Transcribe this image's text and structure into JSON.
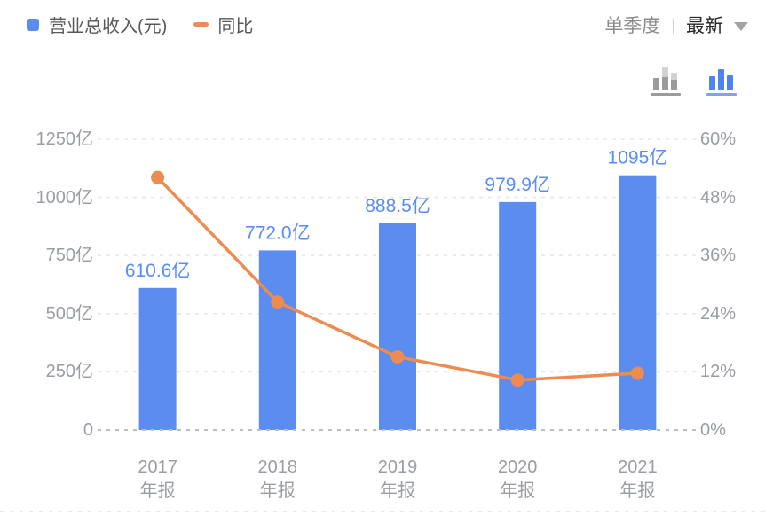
{
  "header": {
    "legend": [
      {
        "label": "营业总收入(元)",
        "color": "#5B8CF0",
        "marker": "square"
      },
      {
        "label": "同比",
        "color": "#ED8B51",
        "marker": "dash"
      }
    ],
    "period_selector": {
      "inactive_option": "单季度",
      "separator": "|",
      "selected_option": "最新"
    },
    "chart_style_icons": [
      "quarterly-bars-icon",
      "annual-bars-icon"
    ]
  },
  "chart_data": {
    "type": "bar+line",
    "categories": [
      {
        "line1": "2017",
        "line2": "年报"
      },
      {
        "line1": "2018",
        "line2": "年报"
      },
      {
        "line1": "2019",
        "line2": "年报"
      },
      {
        "line1": "2020",
        "line2": "年报"
      },
      {
        "line1": "2021",
        "line2": "年报"
      }
    ],
    "series": [
      {
        "name": "营业总收入(元)",
        "type": "bar",
        "axis": "left",
        "unit": "亿",
        "values": [
          610.6,
          772.0,
          888.5,
          979.9,
          1095
        ],
        "labels": [
          "610.6亿",
          "772.0亿",
          "888.5亿",
          "979.9亿",
          "1095亿"
        ],
        "color": "#5B8CF0",
        "label_color": "#5A8CF5"
      },
      {
        "name": "同比",
        "type": "line",
        "axis": "right",
        "unit": "%",
        "values": [
          52.1,
          26.4,
          15.1,
          10.3,
          11.7
        ],
        "color": "#ED8B51"
      }
    ],
    "left_axis": {
      "ticks": [
        "0",
        "250亿",
        "500亿",
        "750亿",
        "1000亿",
        "1250亿"
      ],
      "min": 0,
      "max": 1250
    },
    "right_axis": {
      "ticks": [
        "0%",
        "12%",
        "24%",
        "36%",
        "48%",
        "60%"
      ],
      "min": 0,
      "max": 60
    },
    "grid": "dashed",
    "grid_color": "#e8e8e8",
    "zero_line_color": "#bdbdbd",
    "bottom_rule_color": "#e2e2e2",
    "legend_position": "top-left"
  }
}
